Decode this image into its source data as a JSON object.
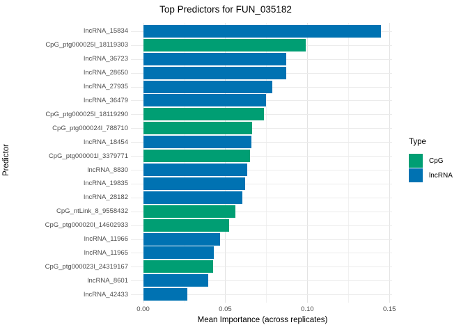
{
  "chart_data": {
    "type": "bar",
    "orientation": "horizontal",
    "title": "Top Predictors for FUN_035182",
    "xlabel": "Mean Importance (across replicates)",
    "ylabel": "Predictor",
    "xlim": [
      0,
      0.152
    ],
    "grid": true,
    "x_major_ticks": {
      "values": [
        0,
        0.05,
        0.1,
        0.15
      ],
      "labels": [
        "0.00",
        "0.05",
        "0.10",
        "0.15"
      ]
    },
    "x_minor_ticks": [
      0.025,
      0.075,
      0.125
    ],
    "colors": {
      "CpG": "#009E73",
      "lncRNA": "#0072B2"
    },
    "legend": {
      "title": "Type",
      "position": "right",
      "entries": [
        {
          "label": "CpG",
          "type": "CpG",
          "color": "#009E73"
        },
        {
          "label": "lncRNA",
          "type": "lncRNA",
          "color": "#0072B2"
        }
      ]
    },
    "bars": [
      {
        "label": "lncRNA_15834",
        "type": "lncRNA",
        "value": 0.145
      },
      {
        "label": "CpG_ptg000025l_18119303",
        "type": "CpG",
        "value": 0.099
      },
      {
        "label": "lncRNA_36723",
        "type": "lncRNA",
        "value": 0.087
      },
      {
        "label": "lncRNA_28650",
        "type": "lncRNA",
        "value": 0.087
      },
      {
        "label": "lncRNA_27935",
        "type": "lncRNA",
        "value": 0.0785
      },
      {
        "label": "lncRNA_36479",
        "type": "lncRNA",
        "value": 0.075
      },
      {
        "label": "CpG_ptg000025l_18119290",
        "type": "CpG",
        "value": 0.0735
      },
      {
        "label": "CpG_ptg000024l_788710",
        "type": "CpG",
        "value": 0.0665
      },
      {
        "label": "lncRNA_18454",
        "type": "lncRNA",
        "value": 0.066
      },
      {
        "label": "CpG_ptg000001l_3379771",
        "type": "CpG",
        "value": 0.065
      },
      {
        "label": "lncRNA_8830",
        "type": "lncRNA",
        "value": 0.0635
      },
      {
        "label": "lncRNA_19835",
        "type": "lncRNA",
        "value": 0.062
      },
      {
        "label": "lncRNA_28182",
        "type": "lncRNA",
        "value": 0.0605
      },
      {
        "label": "CpG_ntLink_8_9558432",
        "type": "CpG",
        "value": 0.056
      },
      {
        "label": "CpG_ptg000020l_14602933",
        "type": "CpG",
        "value": 0.0523
      },
      {
        "label": "lncRNA_11966",
        "type": "lncRNA",
        "value": 0.047
      },
      {
        "label": "lncRNA_11965",
        "type": "lncRNA",
        "value": 0.0432
      },
      {
        "label": "CpG_ptg000023l_24319167",
        "type": "CpG",
        "value": 0.0425
      },
      {
        "label": "lncRNA_8601",
        "type": "lncRNA",
        "value": 0.0397
      },
      {
        "label": "lncRNA_42433",
        "type": "lncRNA",
        "value": 0.027
      }
    ]
  }
}
